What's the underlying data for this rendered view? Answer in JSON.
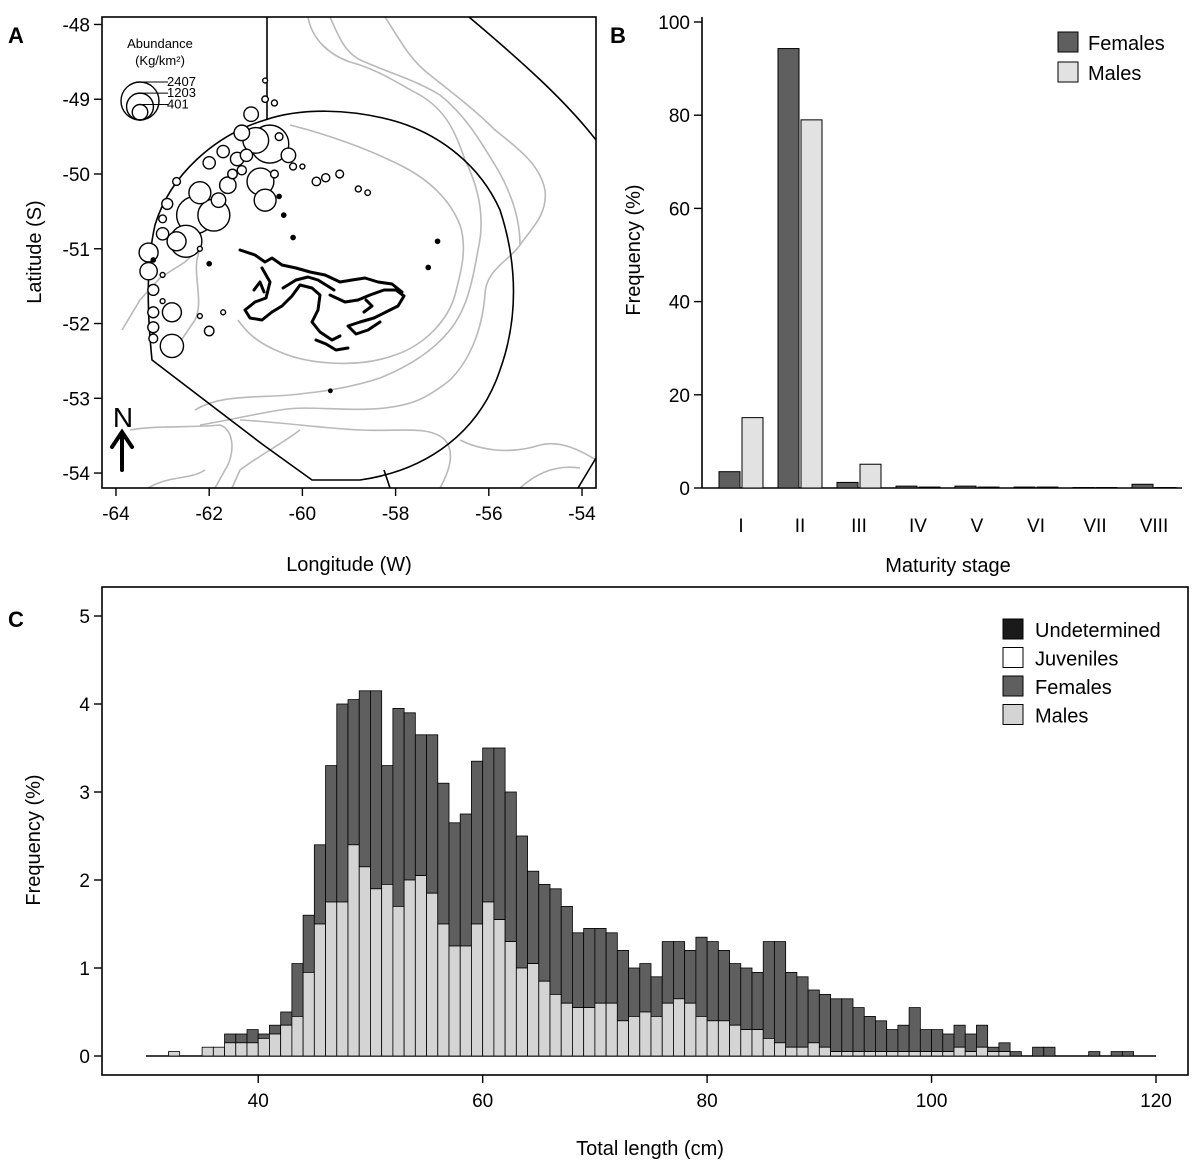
{
  "colors": {
    "female": "#5f5f5f",
    "male": "#d4d4d4",
    "male_b": "#e2e2e2",
    "undetermined": "#1a1a1a",
    "juvenile": "#ffffff",
    "isobath": "#b9b9b9",
    "coast": "#000000"
  },
  "chart_data": [
    {
      "panel": "A",
      "type": "scatter",
      "xlabel": "Longitude (W)",
      "ylabel": "Latitude (S)",
      "x_ticks": [
        "-64",
        "-62",
        "-60",
        "-58",
        "-56",
        "-54"
      ],
      "y_ticks": [
        "-48",
        "-49",
        "-50",
        "-51",
        "-52",
        "-53",
        "-54"
      ],
      "xlim": [
        -64.3,
        -53.7
      ],
      "ylim": [
        -54.2,
        -47.9
      ],
      "legend": {
        "title_line1": "Abundance",
        "title_line2": "(Kg/km²)",
        "labels": [
          "2407",
          "1203",
          "401"
        ]
      },
      "north_label": "N",
      "symbol_sizes": [
        2407,
        1203,
        401
      ],
      "points": [
        {
          "lon": -60.7,
          "lat": -49.6,
          "abundance": 2400
        },
        {
          "lon": -62.3,
          "lat": -50.55,
          "abundance": 2300
        },
        {
          "lon": -61.9,
          "lat": -50.55,
          "abundance": 1700
        },
        {
          "lon": -62.5,
          "lat": -50.9,
          "abundance": 1700
        },
        {
          "lon": -62.8,
          "lat": -52.3,
          "abundance": 900
        },
        {
          "lon": -61.0,
          "lat": -49.55,
          "abundance": 1100
        },
        {
          "lon": -60.9,
          "lat": -50.1,
          "abundance": 1200
        },
        {
          "lon": -60.8,
          "lat": -50.35,
          "abundance": 800
        },
        {
          "lon": -62.2,
          "lat": -50.25,
          "abundance": 800
        },
        {
          "lon": -62.7,
          "lat": -50.9,
          "abundance": 600
        },
        {
          "lon": -63.3,
          "lat": -51.05,
          "abundance": 600
        },
        {
          "lon": -62.8,
          "lat": -51.85,
          "abundance": 600
        },
        {
          "lon": -63.3,
          "lat": -51.3,
          "abundance": 500
        },
        {
          "lon": -61.6,
          "lat": -50.15,
          "abundance": 450
        },
        {
          "lon": -61.8,
          "lat": -50.35,
          "abundance": 350
        },
        {
          "lon": -61.4,
          "lat": -49.8,
          "abundance": 300
        },
        {
          "lon": -61.3,
          "lat": -49.45,
          "abundance": 400
        },
        {
          "lon": -61.1,
          "lat": -49.2,
          "abundance": 350
        },
        {
          "lon": -61.2,
          "lat": -49.75,
          "abundance": 250
        },
        {
          "lon": -62.0,
          "lat": -49.85,
          "abundance": 250
        },
        {
          "lon": -61.7,
          "lat": -49.7,
          "abundance": 250
        },
        {
          "lon": -63.0,
          "lat": -50.8,
          "abundance": 250
        },
        {
          "lon": -62.9,
          "lat": -50.4,
          "abundance": 200
        },
        {
          "lon": -63.2,
          "lat": -51.55,
          "abundance": 200
        },
        {
          "lon": -63.2,
          "lat": -51.85,
          "abundance": 200
        },
        {
          "lon": -63.2,
          "lat": -52.05,
          "abundance": 200
        },
        {
          "lon": -63.2,
          "lat": -52.2,
          "abundance": 130
        },
        {
          "lon": -62.0,
          "lat": -52.1,
          "abundance": 150
        },
        {
          "lon": -61.5,
          "lat": -50.0,
          "abundance": 150
        },
        {
          "lon": -61.3,
          "lat": -49.95,
          "abundance": 140
        },
        {
          "lon": -60.3,
          "lat": -49.75,
          "abundance": 350
        },
        {
          "lon": -60.5,
          "lat": -49.5,
          "abundance": 100
        },
        {
          "lon": -59.7,
          "lat": -50.1,
          "abundance": 120
        },
        {
          "lon": -59.5,
          "lat": -50.05,
          "abundance": 110
        },
        {
          "lon": -59.2,
          "lat": -50.0,
          "abundance": 100
        },
        {
          "lon": -60.6,
          "lat": -50.0,
          "abundance": 100
        },
        {
          "lon": -62.7,
          "lat": -50.1,
          "abundance": 100
        },
        {
          "lon": -63.0,
          "lat": -50.6,
          "abundance": 100
        },
        {
          "lon": -60.8,
          "lat": -49.0,
          "abundance": 70
        },
        {
          "lon": -60.6,
          "lat": -49.05,
          "abundance": 60
        },
        {
          "lon": -60.8,
          "lat": -48.75,
          "abundance": 40
        },
        {
          "lon": -60.2,
          "lat": -49.9,
          "abundance": 80
        },
        {
          "lon": -58.8,
          "lat": -50.2,
          "abundance": 60
        },
        {
          "lon": -58.6,
          "lat": -50.25,
          "abundance": 50
        },
        {
          "lon": -60.0,
          "lat": -49.9,
          "abundance": 40
        },
        {
          "lon": -62.2,
          "lat": -51.0,
          "abundance": 40
        },
        {
          "lon": -61.7,
          "lat": -51.85,
          "abundance": 40
        },
        {
          "lon": -62.2,
          "lat": -51.9,
          "abundance": 40
        },
        {
          "lon": -63.0,
          "lat": -51.35,
          "abundance": 40
        },
        {
          "lon": -63.0,
          "lat": -51.7,
          "abundance": 40
        },
        {
          "lon": -60.5,
          "lat": -50.3,
          "abundance": 30
        },
        {
          "lon": -60.4,
          "lat": -50.55,
          "abundance": 30
        },
        {
          "lon": -60.2,
          "lat": -50.85,
          "abundance": 30
        },
        {
          "lon": -57.1,
          "lat": -50.9,
          "abundance": 30
        },
        {
          "lon": -57.3,
          "lat": -51.25,
          "abundance": 30
        },
        {
          "lon": -59.4,
          "lat": -52.9,
          "abundance": 20
        },
        {
          "lon": -62.0,
          "lat": -51.2,
          "abundance": 30
        },
        {
          "lon": -63.2,
          "lat": -51.15,
          "abundance": 30
        }
      ]
    },
    {
      "panel": "B",
      "type": "bar",
      "categories": [
        "I",
        "II",
        "III",
        "IV",
        "V",
        "VI",
        "VII",
        "VIII"
      ],
      "series": [
        {
          "name": "Females",
          "values": [
            3.5,
            94.3,
            1.2,
            0.4,
            0.4,
            0.2,
            0.1,
            0.8
          ]
        },
        {
          "name": "Males",
          "values": [
            15.1,
            79.0,
            5.1,
            0.2,
            0.2,
            0.2,
            0.1,
            0.1
          ]
        }
      ],
      "xlabel": "Maturity stage",
      "ylabel": "Frequency (%)",
      "ylim": [
        0,
        100
      ],
      "y_ticks": [
        0,
        20,
        40,
        60,
        80,
        100
      ],
      "legend_position": "top-right"
    },
    {
      "panel": "C",
      "type": "bar",
      "stacked": true,
      "bin_width": 1,
      "x_start": 30,
      "xlabel": "Total length (cm)",
      "ylabel": "Frequency (%)",
      "xlim": [
        30,
        120
      ],
      "ylim": [
        0,
        5
      ],
      "x_ticks": [
        40,
        60,
        80,
        100,
        120
      ],
      "y_ticks": [
        0,
        1,
        2,
        3,
        4,
        5
      ],
      "legend_position": "top-right",
      "series": [
        {
          "name": "Males",
          "values": [
            0,
            0,
            0.05,
            0,
            0,
            0.1,
            0.1,
            0.15,
            0.15,
            0.15,
            0.2,
            0.25,
            0.35,
            0.45,
            0.95,
            1.5,
            1.75,
            1.75,
            2.4,
            2.15,
            1.9,
            1.95,
            1.7,
            2.0,
            2.05,
            1.85,
            1.5,
            1.25,
            1.25,
            1.5,
            1.75,
            1.55,
            1.3,
            1.0,
            1.05,
            0.85,
            0.7,
            0.6,
            0.55,
            0.55,
            0.6,
            0.6,
            0.4,
            0.45,
            0.5,
            0.45,
            0.6,
            0.65,
            0.6,
            0.45,
            0.4,
            0.4,
            0.35,
            0.3,
            0.3,
            0.2,
            0.15,
            0.1,
            0.1,
            0.15,
            0.1,
            0.05,
            0.05,
            0.05,
            0.05,
            0.05,
            0.05,
            0.05,
            0.05,
            0.05,
            0.05,
            0.05,
            0.1,
            0.05,
            0.1,
            0.05,
            0.05,
            0,
            0,
            0,
            0,
            0,
            0,
            0,
            0,
            0,
            0,
            0,
            0
          ]
        },
        {
          "name": "Females",
          "values": [
            0,
            0,
            0,
            0,
            0,
            0,
            0,
            0.1,
            0.1,
            0.15,
            0.05,
            0.1,
            0.15,
            0.6,
            0.65,
            0.9,
            1.55,
            2.25,
            1.65,
            2.0,
            2.25,
            1.35,
            2.25,
            1.9,
            1.6,
            1.8,
            1.6,
            1.4,
            1.5,
            1.85,
            1.75,
            1.95,
            1.7,
            1.5,
            1.05,
            1.1,
            1.2,
            1.1,
            0.85,
            0.9,
            0.85,
            0.8,
            0.8,
            0.55,
            0.55,
            0.45,
            0.7,
            0.65,
            0.6,
            0.9,
            0.9,
            0.8,
            0.7,
            0.7,
            0.65,
            1.1,
            1.15,
            0.85,
            0.8,
            0.6,
            0.6,
            0.6,
            0.6,
            0.5,
            0.4,
            0.35,
            0.25,
            0.3,
            0.5,
            0.25,
            0.25,
            0.2,
            0.25,
            0.2,
            0.25,
            0.05,
            0.1,
            0.05,
            0,
            0.1,
            0.1,
            0,
            0,
            0,
            0.05,
            0,
            0.05,
            0.05,
            0
          ]
        },
        {
          "name": "Juveniles",
          "values": []
        },
        {
          "name": "Undetermined",
          "values": []
        }
      ]
    }
  ]
}
